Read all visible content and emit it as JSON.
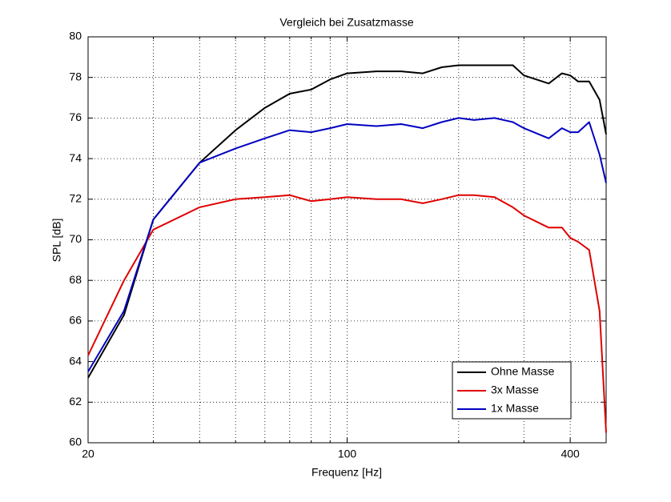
{
  "chart_data": {
    "type": "line",
    "title": "Vergleich bei Zusatzmasse",
    "xlabel": "Frequenz [Hz]",
    "ylabel": "SPL [dB]",
    "x": [
      20,
      25,
      30,
      40,
      50,
      60,
      70,
      80,
      90,
      100,
      120,
      140,
      160,
      180,
      200,
      220,
      250,
      280,
      300,
      350,
      380,
      400,
      420,
      450,
      480,
      500
    ],
    "series": [
      {
        "name": "Ohne Masse",
        "color": "#000000",
        "values": [
          63.2,
          66.3,
          71.0,
          73.8,
          75.4,
          76.5,
          77.2,
          77.4,
          77.9,
          78.2,
          78.3,
          78.3,
          78.2,
          78.5,
          78.6,
          78.6,
          78.6,
          78.6,
          78.1,
          77.7,
          78.2,
          78.1,
          77.8,
          77.8,
          76.9,
          75.2
        ]
      },
      {
        "name": "3x Masse",
        "color": "#e00000",
        "values": [
          64.3,
          68.0,
          70.5,
          71.6,
          72.0,
          72.1,
          72.2,
          71.9,
          72.0,
          72.1,
          72.0,
          72.0,
          71.8,
          72.0,
          72.2,
          72.2,
          72.1,
          71.6,
          71.2,
          70.6,
          70.6,
          70.1,
          69.9,
          69.5,
          66.5,
          60.5
        ]
      },
      {
        "name": "1x Masse",
        "color": "#0000c0",
        "values": [
          63.5,
          66.5,
          71.0,
          73.8,
          74.5,
          75.0,
          75.4,
          75.3,
          75.5,
          75.7,
          75.6,
          75.7,
          75.5,
          75.8,
          76.0,
          75.9,
          76.0,
          75.8,
          75.5,
          75.0,
          75.5,
          75.3,
          75.3,
          75.8,
          74.2,
          72.8
        ]
      }
    ],
    "xlim": [
      20,
      500
    ],
    "xscale": "log",
    "xticks": [
      20,
      100,
      400
    ],
    "xminorticks": [
      30,
      40,
      50,
      60,
      70,
      80,
      90,
      200,
      300
    ],
    "ylim": [
      60,
      80
    ],
    "yticks": [
      60,
      62,
      64,
      66,
      68,
      70,
      72,
      74,
      76,
      78,
      80
    ],
    "grid": true,
    "legend": "lower right"
  }
}
